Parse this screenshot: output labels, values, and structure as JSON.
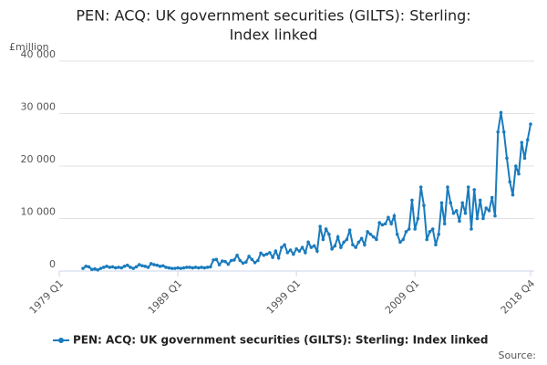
{
  "chart_data": {
    "type": "line",
    "title": [
      "PEN: ACQ: UK government securities (GILTS): Sterling:",
      "Index linked"
    ],
    "y_unit": "£million",
    "source": "Source:",
    "categories": [
      "1979 Q1",
      null,
      null,
      null,
      null,
      null,
      null,
      null,
      null,
      null,
      null,
      null,
      null,
      null,
      null,
      null,
      null,
      null,
      null,
      null,
      null,
      null,
      null,
      null,
      null,
      null,
      null,
      null,
      null,
      null,
      null,
      null,
      null,
      null,
      null,
      null,
      null,
      null,
      null,
      null,
      "1989 Q1",
      null,
      null,
      null,
      null,
      null,
      null,
      null,
      null,
      null,
      null,
      null,
      null,
      null,
      null,
      null,
      null,
      null,
      null,
      null,
      null,
      null,
      null,
      null,
      null,
      null,
      null,
      null,
      null,
      null,
      null,
      null,
      null,
      null,
      null,
      null,
      null,
      null,
      null,
      null,
      "1999 Q1",
      null,
      null,
      null,
      null,
      null,
      null,
      null,
      null,
      null,
      null,
      null,
      null,
      null,
      null,
      null,
      null,
      null,
      null,
      null,
      null,
      null,
      null,
      null,
      null,
      null,
      null,
      null,
      null,
      null,
      null,
      null,
      null,
      null,
      null,
      null,
      null,
      null,
      null,
      null,
      "2009 Q1",
      null,
      null,
      null,
      null,
      null,
      null,
      null,
      null,
      null,
      null,
      null,
      null,
      null,
      null,
      null,
      null,
      null,
      null,
      null,
      null,
      null,
      null,
      null,
      null,
      null,
      null,
      null,
      null,
      null,
      null,
      null,
      null,
      null,
      null,
      null,
      null,
      null,
      null,
      "2018 Q4"
    ],
    "series": [
      {
        "name": "PEN: ACQ: UK government securities (GILTS): Sterling: Index linked",
        "color": "#1a7bbd",
        "values": [
          null,
          null,
          null,
          null,
          null,
          null,
          null,
          null,
          500,
          900,
          800,
          300,
          400,
          200,
          500,
          700,
          900,
          700,
          800,
          600,
          700,
          600,
          900,
          1100,
          700,
          500,
          800,
          1200,
          1000,
          900,
          700,
          1400,
          1200,
          1100,
          900,
          1000,
          700,
          600,
          500,
          500,
          600,
          500,
          600,
          700,
          700,
          600,
          700,
          600,
          700,
          600,
          700,
          800,
          2100,
          2200,
          1200,
          1900,
          1800,
          1300,
          2000,
          2100,
          3000,
          2000,
          1500,
          1700,
          2800,
          2200,
          1600,
          2000,
          3400,
          3000,
          3200,
          3500,
          2600,
          3800,
          2500,
          4500,
          5000,
          3500,
          4000,
          3200,
          4200,
          3800,
          4500,
          3500,
          5500,
          4500,
          4800,
          3800,
          8500,
          6000,
          8000,
          7000,
          4200,
          4800,
          6500,
          4500,
          5500,
          6000,
          7800,
          5000,
          4500,
          5500,
          6200,
          5000,
          7500,
          7000,
          6500,
          6000,
          9200,
          8800,
          9000,
          10200,
          9000,
          10500,
          7000,
          5500,
          6000,
          7500,
          8000,
          13500,
          8000,
          10000,
          16000,
          12500,
          6000,
          7500,
          8000,
          5000,
          7000,
          13000,
          9000,
          16000,
          13000,
          11000,
          11500,
          9500,
          13000,
          11000,
          16000,
          8000,
          15500,
          10000,
          13500,
          10000,
          12000,
          11500,
          14000,
          10500,
          26500,
          30200,
          26500,
          21500,
          17000,
          14500,
          20000,
          18500,
          24500,
          21500,
          25000,
          28000
        ]
      }
    ],
    "ylim": [
      0,
      40000
    ],
    "yticks": [
      0,
      {
        "value": 10000,
        "label": "10 000"
      },
      {
        "value": 20000,
        "label": "20 000"
      },
      {
        "value": 30000,
        "label": "30 000"
      },
      {
        "value": 40000,
        "label": "40 000"
      }
    ],
    "grid": true
  }
}
